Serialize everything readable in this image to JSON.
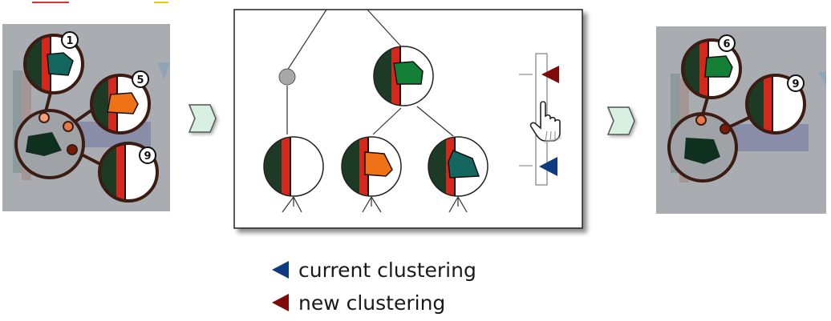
{
  "left_panel": {
    "badges": [
      "1",
      "5",
      "9"
    ],
    "cluster_colors": {
      "teal": "#13675f",
      "orange": "#ef7316",
      "dark": "#10301f"
    }
  },
  "dendrogram": {
    "node_colors": {
      "green": "#138035",
      "orange": "#ef7316",
      "teal": "#13675f"
    },
    "markers": {
      "new": "#800a0a",
      "current": "#0d3a80"
    }
  },
  "right_panel": {
    "badges": [
      "6",
      "9"
    ],
    "cluster_colors": {
      "green": "#138035",
      "dark": "#10301f"
    }
  },
  "legend": {
    "current": {
      "label": "current clustering",
      "color": "#0d3a80"
    },
    "new": {
      "label": "new clustering",
      "color": "#800a0a"
    }
  },
  "icons": [
    "hand-pointer-icon",
    "chevron-right-icon"
  ]
}
